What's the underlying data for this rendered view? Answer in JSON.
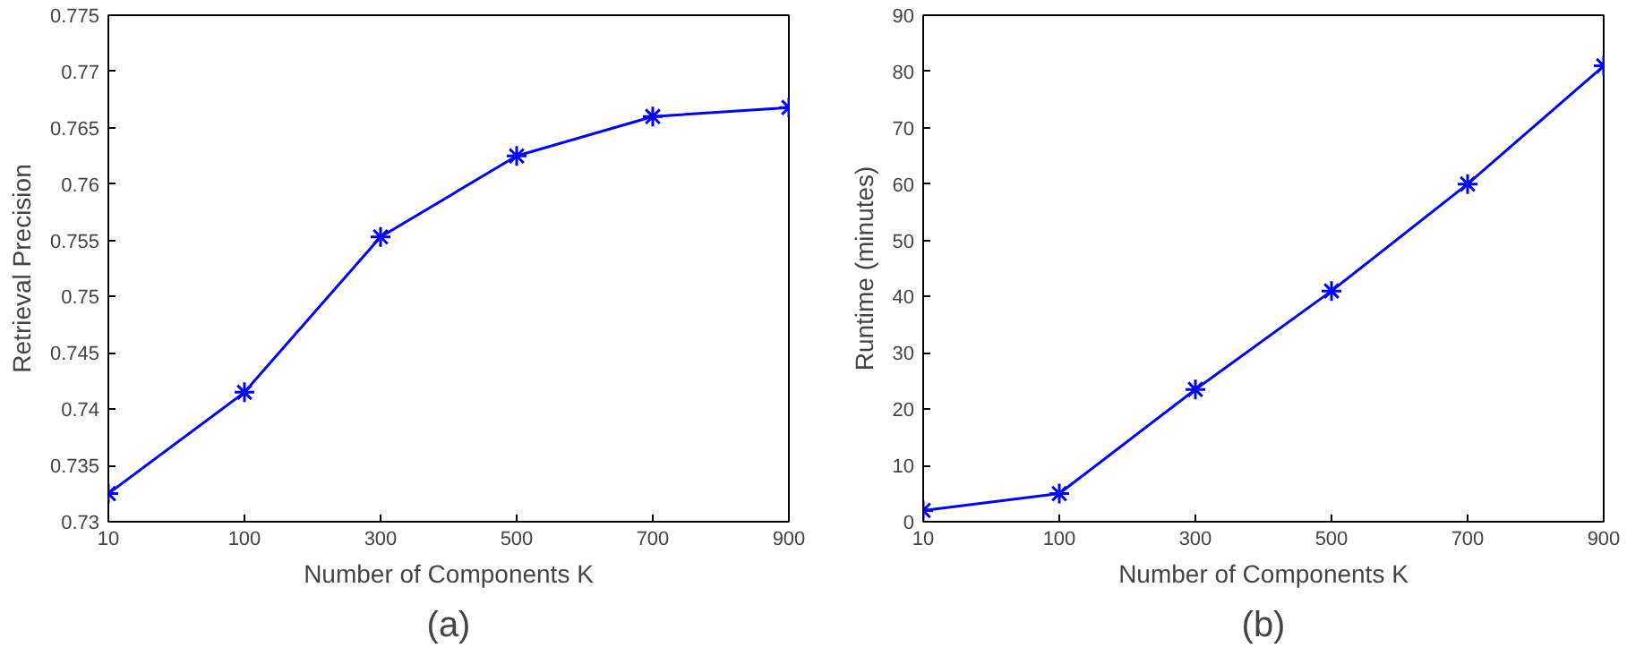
{
  "chart_data": [
    {
      "type": "line",
      "categories": [
        "10",
        "100",
        "300",
        "500",
        "700",
        "900"
      ],
      "xlabel": "Number of Components K",
      "ylabel": "Retrieval Precision",
      "ylim": [
        0.73,
        0.775
      ],
      "yticks": [
        0.73,
        0.735,
        0.74,
        0.745,
        0.75,
        0.755,
        0.76,
        0.765,
        0.77,
        0.775
      ],
      "marker": "cross",
      "line_style": "solid",
      "annotations": [
        "(a)"
      ],
      "series": [
        {
          "color": "#0000ff",
          "values": [
            0.7325,
            0.7415,
            0.7553,
            0.7625,
            0.766,
            0.7668
          ]
        }
      ]
    },
    {
      "type": "line",
      "categories": [
        "10",
        "100",
        "300",
        "500",
        "700",
        "900"
      ],
      "xlabel": "Number of Components K",
      "ylabel": "Runtime (minutes)",
      "ylim": [
        0,
        90
      ],
      "yticks": [
        0,
        10,
        20,
        30,
        40,
        50,
        60,
        70,
        80,
        90
      ],
      "marker": "cross",
      "line_style": "solid",
      "annotations": [
        "(b)"
      ],
      "series": [
        {
          "color": "#0000ff",
          "values": [
            2,
            5,
            23.5,
            41,
            60,
            81
          ]
        }
      ]
    }
  ]
}
